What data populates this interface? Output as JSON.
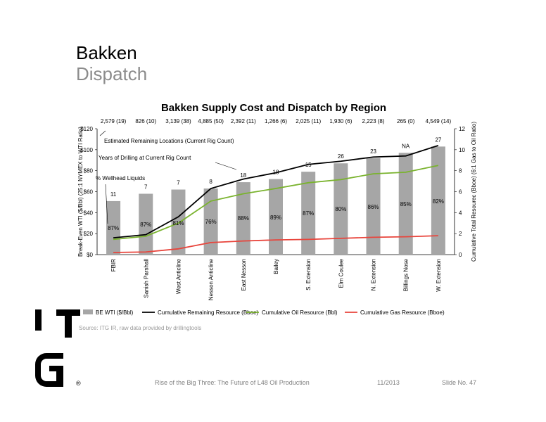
{
  "slide": {
    "title": "Bakken",
    "subtitle": "Dispatch",
    "source": "Source: ITG IR, raw data provided by drillingtools",
    "footer_title": "Rise of the Big Three: The Future of L48 Oil Production",
    "footer_date": "11/2013",
    "footer_slide": "Slide No. 47"
  },
  "chart_data": {
    "type": "bar",
    "title": "Bakken Supply Cost and Dispatch by Region",
    "categories": [
      "FBIR",
      "Sanish Parshall",
      "West Anticline",
      "Nesson Anticline",
      "East Nesson",
      "Bailey",
      "S. Extension",
      "Elm Coulee",
      "N. Extension",
      "Billings Nose",
      "W. Extension"
    ],
    "remaining_locations": [
      "2,579 (19)",
      "826 (10)",
      "3,139 (38)",
      "4,885 (50)",
      "2,392 (11)",
      "1,266 (6)",
      "2,025 (11)",
      "1,930 (6)",
      "2,223 (8)",
      "265 (0)",
      "4,549 (14)"
    ],
    "years_labels": [
      "11",
      "7",
      "7",
      "8",
      "18",
      "18",
      "15",
      "26",
      "23",
      "NA",
      "27"
    ],
    "liquids_pct": [
      "87%",
      "87%",
      "81%",
      "76%",
      "88%",
      "89%",
      "87%",
      "80%",
      "86%",
      "85%",
      "82%"
    ],
    "series": [
      {
        "name": "BE WTI ($/Bbl)",
        "axis": "left",
        "values": [
          51,
          58,
          62,
          63,
          69,
          72,
          79,
          87,
          92,
          97,
          103
        ]
      },
      {
        "name": "Cumulative Remaining Resource (Bboe)",
        "axis": "right",
        "values": [
          1.6,
          1.9,
          3.6,
          6.3,
          7.2,
          7.8,
          8.6,
          8.9,
          9.3,
          9.4,
          10.4
        ]
      },
      {
        "name": "Cumulative Oil Resource (Bbl)",
        "axis": "right",
        "values": [
          1.45,
          1.75,
          3.0,
          5.1,
          5.8,
          6.3,
          6.85,
          7.15,
          7.7,
          7.85,
          8.5
        ]
      },
      {
        "name": "Cumulative Gas Resource (Bboe)",
        "axis": "right",
        "values": [
          0.2,
          0.25,
          0.55,
          1.15,
          1.3,
          1.4,
          1.45,
          1.55,
          1.65,
          1.7,
          1.8
        ]
      }
    ],
    "ylabel": "Break-Even WTI ($/Bbl) (25:1 NYMEX to WTI Ratio)",
    "y2label": "Cumulative Total Resourec (Bboe) (6:1 Gas to Oil Ratio)",
    "ylim": [
      0,
      120
    ],
    "y2lim": [
      0,
      12
    ],
    "yticks": [
      "$0",
      "$20",
      "$40",
      "$60",
      "$80",
      "$100",
      "$120"
    ],
    "y2ticks": [
      "0",
      "2",
      "4",
      "6",
      "8",
      "10",
      "12"
    ],
    "annotations": {
      "locations": "Estimated Remaining Locations (Current Rig Count)",
      "years": "Years of Drilling at Current Rig Count",
      "liquids": "% Wellhead Liquids"
    },
    "colors": {
      "bar": "#a6a6a6",
      "remaining": "#000000",
      "oil": "#7ab32e",
      "gas": "#e8453c"
    },
    "legend_position": "bottom",
    "grid": false
  }
}
